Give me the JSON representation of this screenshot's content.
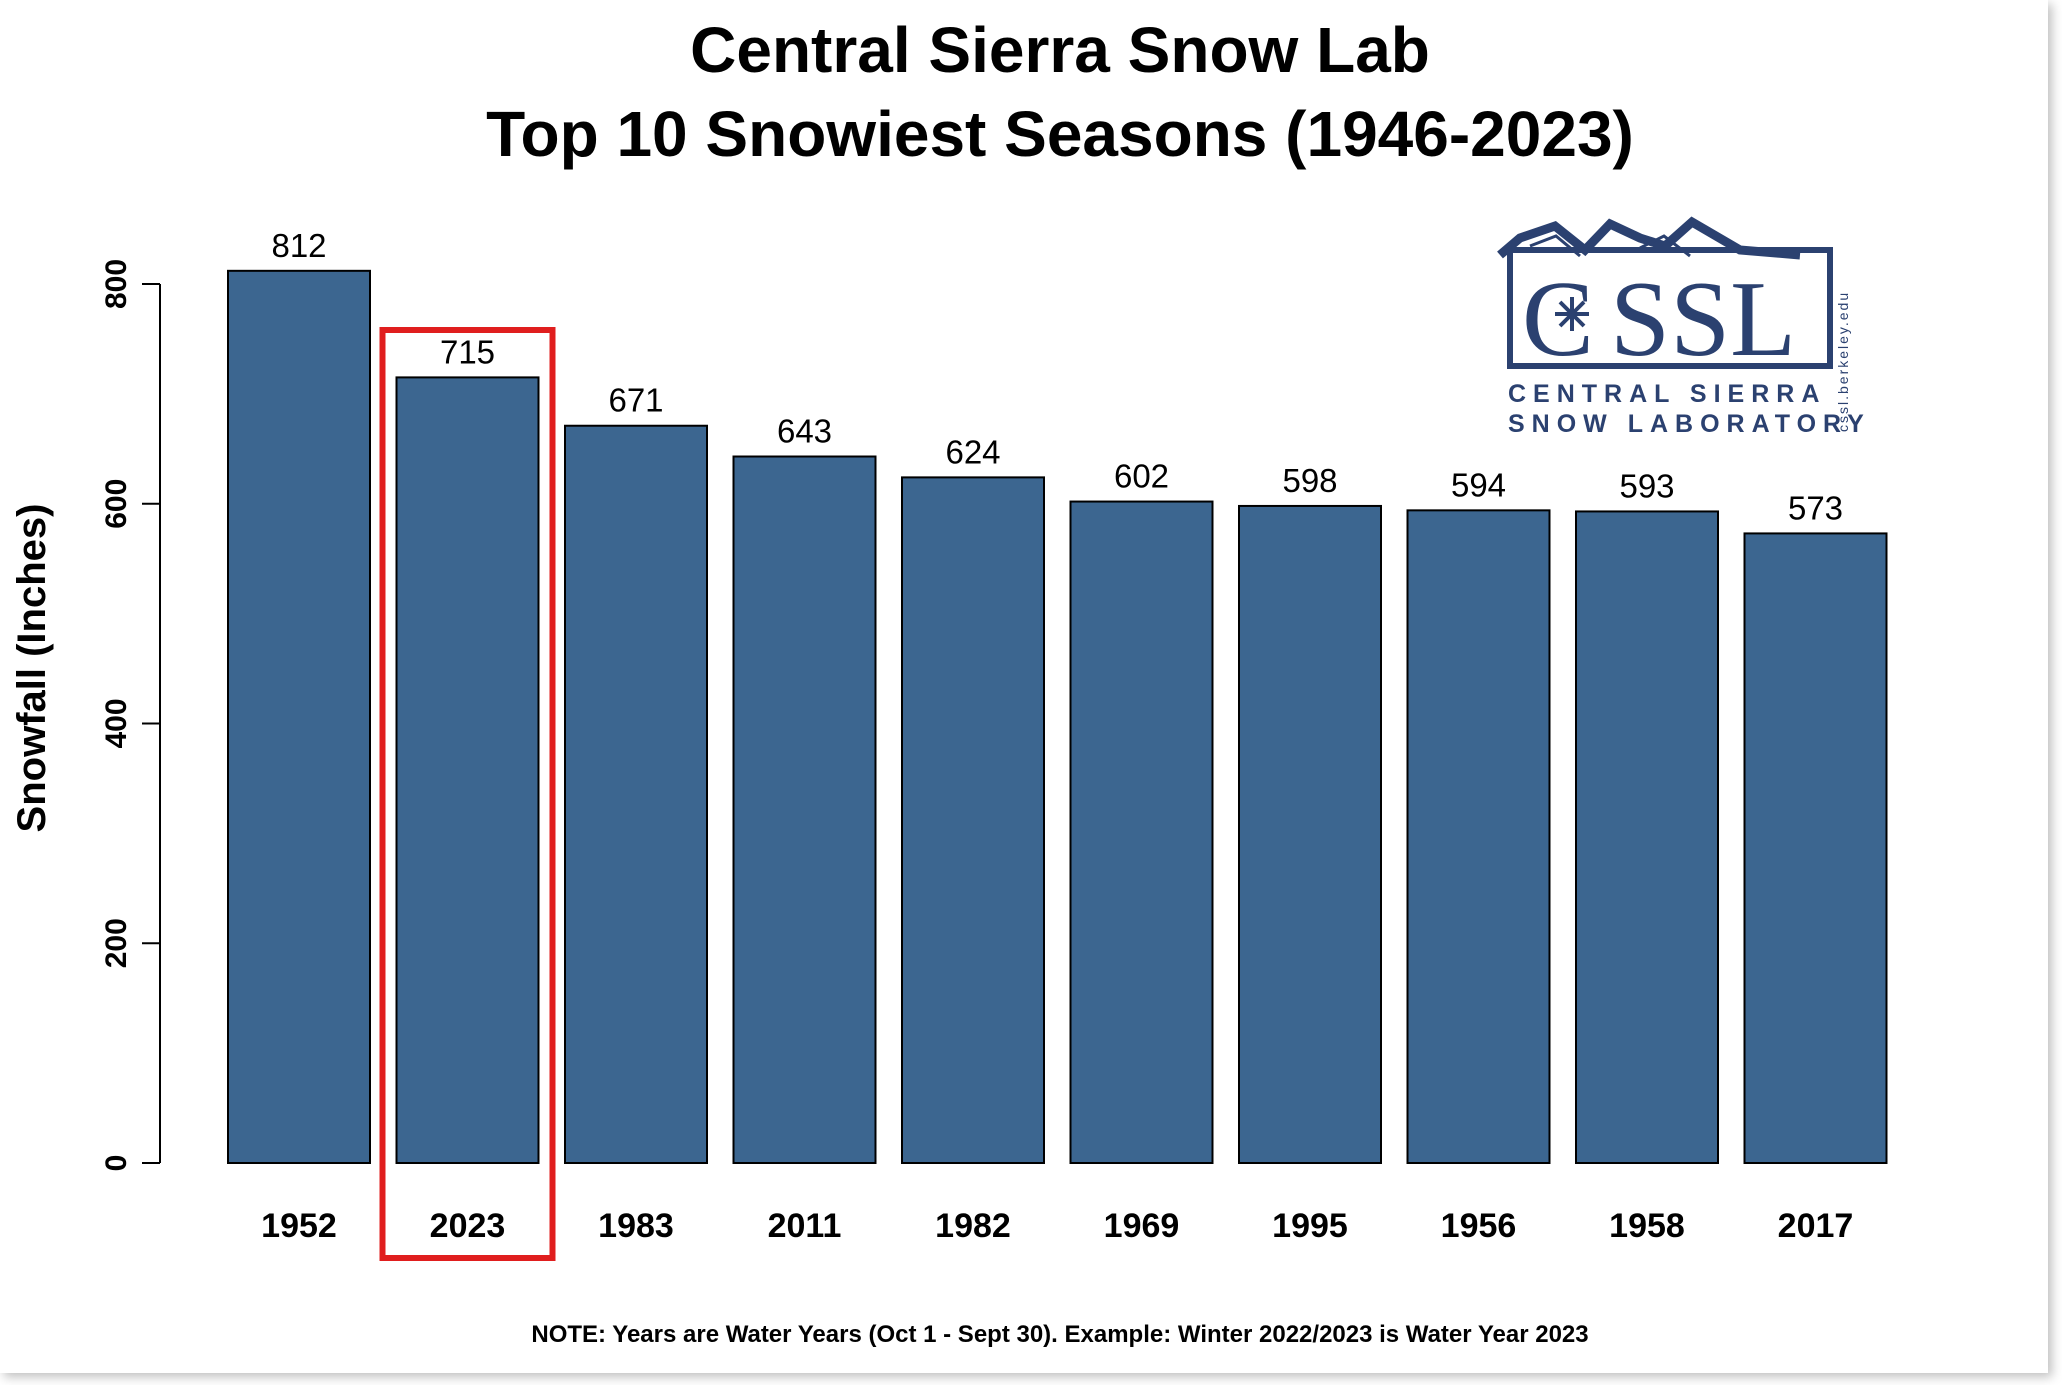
{
  "chart_data": {
    "type": "bar",
    "title_line1": "Central Sierra Snow Lab",
    "title_line2": "Top 10 Snowiest Seasons (1946-2023)",
    "ylabel": "Snowfall (Inches)",
    "xlabel": "",
    "categories": [
      "1952",
      "2023",
      "1983",
      "2011",
      "1982",
      "1969",
      "1995",
      "1956",
      "1958",
      "2017"
    ],
    "values": [
      812,
      715,
      671,
      643,
      624,
      602,
      598,
      594,
      593,
      573
    ],
    "ylim": [
      0,
      800
    ],
    "yticks": [
      0,
      200,
      400,
      600,
      800
    ],
    "highlight_category": "2023",
    "highlight_color": "#e01e1e",
    "bar_color": "#3c6690",
    "grid": false,
    "note": "NOTE: Years are Water Years (Oct 1 - Sept 30). Example: Winter 2022/2023 is Water Year 2023"
  },
  "logo": {
    "letters": "CSSL",
    "line1": "CENTRAL SIERRA",
    "line2": "SNOW LABORATORY",
    "url": "cssl.berkeley.edu",
    "icon": "snowflake-icon",
    "color": "#2b4170"
  }
}
